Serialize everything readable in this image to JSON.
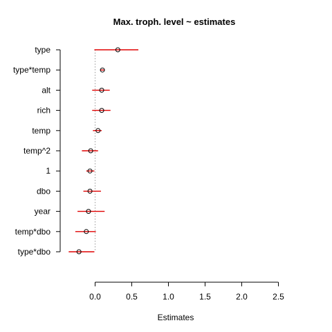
{
  "chart_data": {
    "type": "scatter",
    "title": "Max. troph. level ~ estimates",
    "xlabel": "Estimates",
    "ylabel": "",
    "xlim": [
      -0.35,
      2.5
    ],
    "x_ticks": [
      "0.0",
      "0.5",
      "1.0",
      "1.5",
      "2.0",
      "2.5"
    ],
    "x_tick_values": [
      0,
      0.5,
      1.0,
      1.5,
      2.0,
      2.5
    ],
    "reference_line_x": 0,
    "grid": false,
    "point_color": "#000000",
    "interval_color": "#e00000",
    "reference_color": "#999999",
    "terms": [
      {
        "label": "type",
        "estimate": 0.31,
        "lower": -0.01,
        "upper": 0.59
      },
      {
        "label": "type*temp",
        "estimate": 0.1,
        "lower": 0.07,
        "upper": 0.13
      },
      {
        "label": "alt",
        "estimate": 0.09,
        "lower": -0.04,
        "upper": 0.2
      },
      {
        "label": "rich",
        "estimate": 0.09,
        "lower": -0.04,
        "upper": 0.21
      },
      {
        "label": "temp",
        "estimate": 0.04,
        "lower": -0.03,
        "upper": 0.09
      },
      {
        "label": "temp^2",
        "estimate": -0.06,
        "lower": -0.18,
        "upper": 0.04
      },
      {
        "label": "1",
        "estimate": -0.07,
        "lower": -0.12,
        "upper": -0.01
      },
      {
        "label": "dbo",
        "estimate": -0.07,
        "lower": -0.16,
        "upper": 0.08
      },
      {
        "label": "year",
        "estimate": -0.09,
        "lower": -0.24,
        "upper": 0.13
      },
      {
        "label": "temp*dbo",
        "estimate": -0.12,
        "lower": -0.27,
        "upper": 0.01
      },
      {
        "label": "type*dbo",
        "estimate": -0.22,
        "lower": -0.36,
        "upper": -0.01
      }
    ]
  }
}
